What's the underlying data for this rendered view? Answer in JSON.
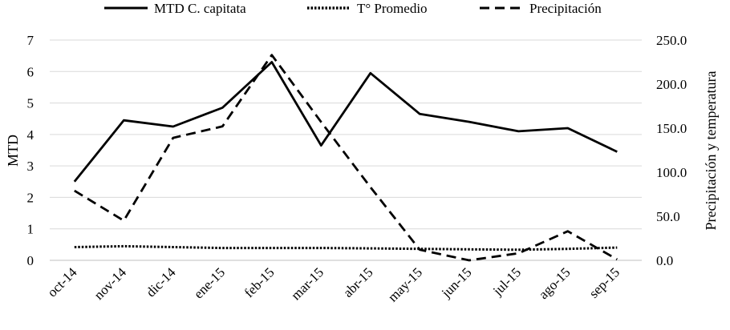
{
  "chart_data": {
    "type": "line",
    "categories": [
      "oct-14",
      "nov-14",
      "dic-14",
      "ene-15",
      "feb-15",
      "mar-15",
      "abr-15",
      "may-15",
      "jun-15",
      "jul-15",
      "ago-15",
      "sep-15"
    ],
    "series": [
      {
        "name": "MTD C. capitata",
        "axis": "left",
        "line_style": "solid",
        "values": [
          2.5,
          4.45,
          4.25,
          4.85,
          6.3,
          3.65,
          5.95,
          4.65,
          4.4,
          4.1,
          4.2,
          3.45
        ]
      },
      {
        "name": "T° Promedio",
        "axis": "right",
        "line_style": "dotted",
        "values": [
          15.0,
          16.0,
          15.0,
          14.0,
          14.0,
          14.0,
          13.5,
          13.0,
          12.5,
          12.0,
          13.0,
          14.5
        ]
      },
      {
        "name": "Precipitación",
        "axis": "right",
        "line_style": "dashed",
        "values": [
          79.0,
          45.0,
          139.0,
          152.0,
          233.0,
          157.0,
          83.0,
          12.0,
          0.0,
          8.0,
          33.0,
          1.0
        ]
      }
    ],
    "ylabel": "MTD",
    "y2label": "Precipitación y temperatura",
    "ylim": [
      0,
      7
    ],
    "y2lim": [
      0,
      250
    ],
    "yticks": [
      "0",
      "1",
      "2",
      "3",
      "4",
      "5",
      "6",
      "7"
    ],
    "y2ticks": [
      "0.0",
      "50.0",
      "100.0",
      "150.0",
      "200.0",
      "250.0"
    ],
    "grid": true,
    "legend_position": "top",
    "colors": {
      "line": "#000000",
      "grid": "#d9d9d9",
      "background": "#ffffff"
    }
  }
}
